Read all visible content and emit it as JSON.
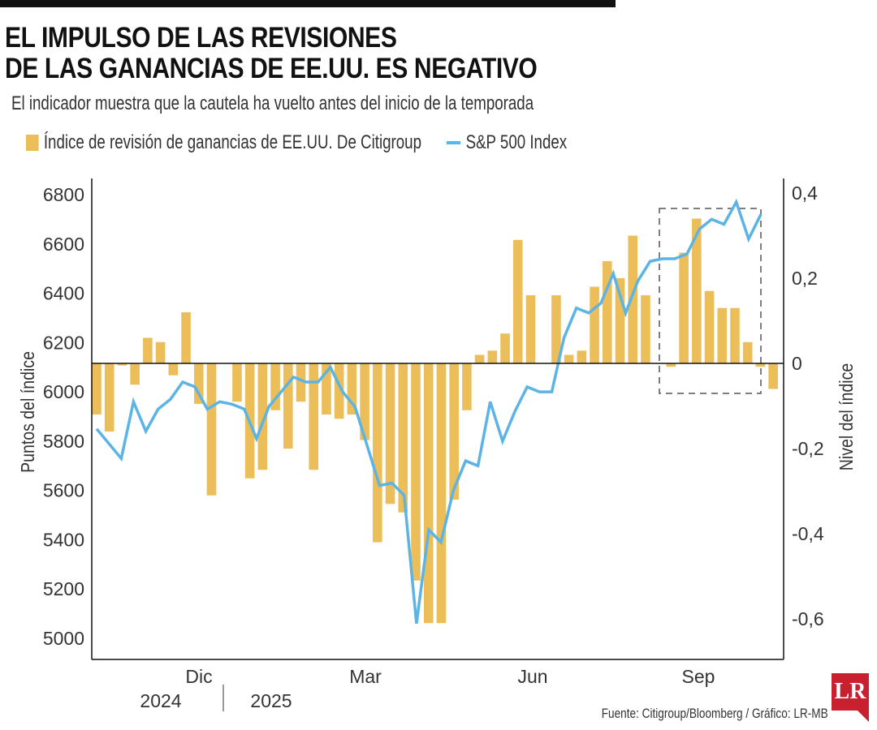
{
  "header": {
    "title_line1": "EL IMPULSO DE LAS REVISIONES",
    "title_line2": "DE LAS GANANCIAS DE EE.UU. ES NEGATIVO",
    "subtitle": "El indicador muestra que la cautela ha vuelto antes del inicio de la temporada"
  },
  "legend": {
    "bar_label": "Índice de revisión de ganancias de EE.UU. De Citigroup",
    "line_label": "S&P 500 Index"
  },
  "colors": {
    "bar": "#EBBE59",
    "line": "#5BB4E5",
    "axis": "#111111",
    "logo": "#C8202F"
  },
  "footer": {
    "source": "Fuente: Citigroup/Bloomberg / Gráfico: LR-MB",
    "logo_text": "LR"
  },
  "chart_data": {
    "type": "bar+line",
    "title": "EL IMPULSO DE LAS REVISIONES DE LAS GANANCIAS DE EE.UU. ES NEGATIVO",
    "left_axis": {
      "label": "Puntos del índice",
      "ticks": [
        "6800",
        "6600",
        "6400",
        "6200",
        "6000",
        "5800",
        "5600",
        "5400",
        "5200",
        "5000"
      ],
      "tick_values": [
        6800,
        6600,
        6400,
        6200,
        6000,
        5800,
        5600,
        5400,
        5200,
        5000
      ],
      "range": [
        4920,
        6860
      ]
    },
    "right_axis": {
      "label": "Nivel del índice",
      "ticks": [
        "0,4",
        "0,2",
        "0",
        "-0,2",
        "-0,4",
        "-0,6"
      ],
      "tick_values": [
        0.4,
        0.2,
        0,
        -0.2,
        -0.4,
        -0.6
      ],
      "range": [
        -0.7,
        0.41
      ]
    },
    "x_axis": {
      "month_labels": [
        {
          "label": "Dic",
          "index": 7
        },
        {
          "label": "Mar",
          "index": 20
        },
        {
          "label": "Jun",
          "index": 34
        },
        {
          "label": "Sep",
          "index": 47
        }
      ],
      "year_labels": [
        "2024",
        "2025"
      ],
      "year_divider_index": 10
    },
    "series": [
      {
        "name": "Índice de revisión de ganancias de EE.UU. De Citigroup",
        "type": "bar",
        "axis": "right",
        "values": [
          -0.12,
          -0.16,
          -0.005,
          -0.05,
          0.06,
          0.05,
          -0.028,
          0.12,
          -0.095,
          -0.31,
          0,
          -0.09,
          -0.27,
          -0.25,
          -0.11,
          -0.2,
          -0.09,
          -0.25,
          -0.12,
          -0.13,
          -0.12,
          -0.18,
          -0.42,
          -0.33,
          -0.35,
          -0.51,
          -0.61,
          -0.61,
          -0.32,
          -0.11,
          0.02,
          0.03,
          0.07,
          0.29,
          0.16,
          0,
          0.16,
          0.02,
          0.03,
          0.18,
          0.24,
          0.2,
          0.3,
          0.16,
          0,
          -0.008,
          0.26,
          0.34,
          0.17,
          0.13,
          0.13,
          0.05,
          -0.008,
          -0.06
        ],
        "note": "highlighted dashed box around the last 10 bars"
      },
      {
        "name": "S&P 500 Index",
        "type": "line",
        "axis": "left",
        "values": [
          5850,
          5790,
          5730,
          5960,
          5840,
          5930,
          5970,
          6040,
          6020,
          5930,
          5960,
          5950,
          5930,
          5810,
          5940,
          6000,
          6060,
          6040,
          6040,
          6100,
          6000,
          5940,
          5780,
          5620,
          5630,
          5580,
          5060,
          5440,
          5390,
          5600,
          5720,
          5700,
          5960,
          5800,
          5920,
          6020,
          6000,
          6000,
          6220,
          6340,
          6320,
          6360,
          6480,
          6320,
          6450,
          6530,
          6540,
          6540,
          6560,
          6660,
          6700,
          6680,
          6770,
          6620,
          6720
        ],
        "highlight_box": {
          "from_index": 46,
          "to_index": 53
        }
      }
    ],
    "grid": false,
    "legend_position": "top-left"
  }
}
